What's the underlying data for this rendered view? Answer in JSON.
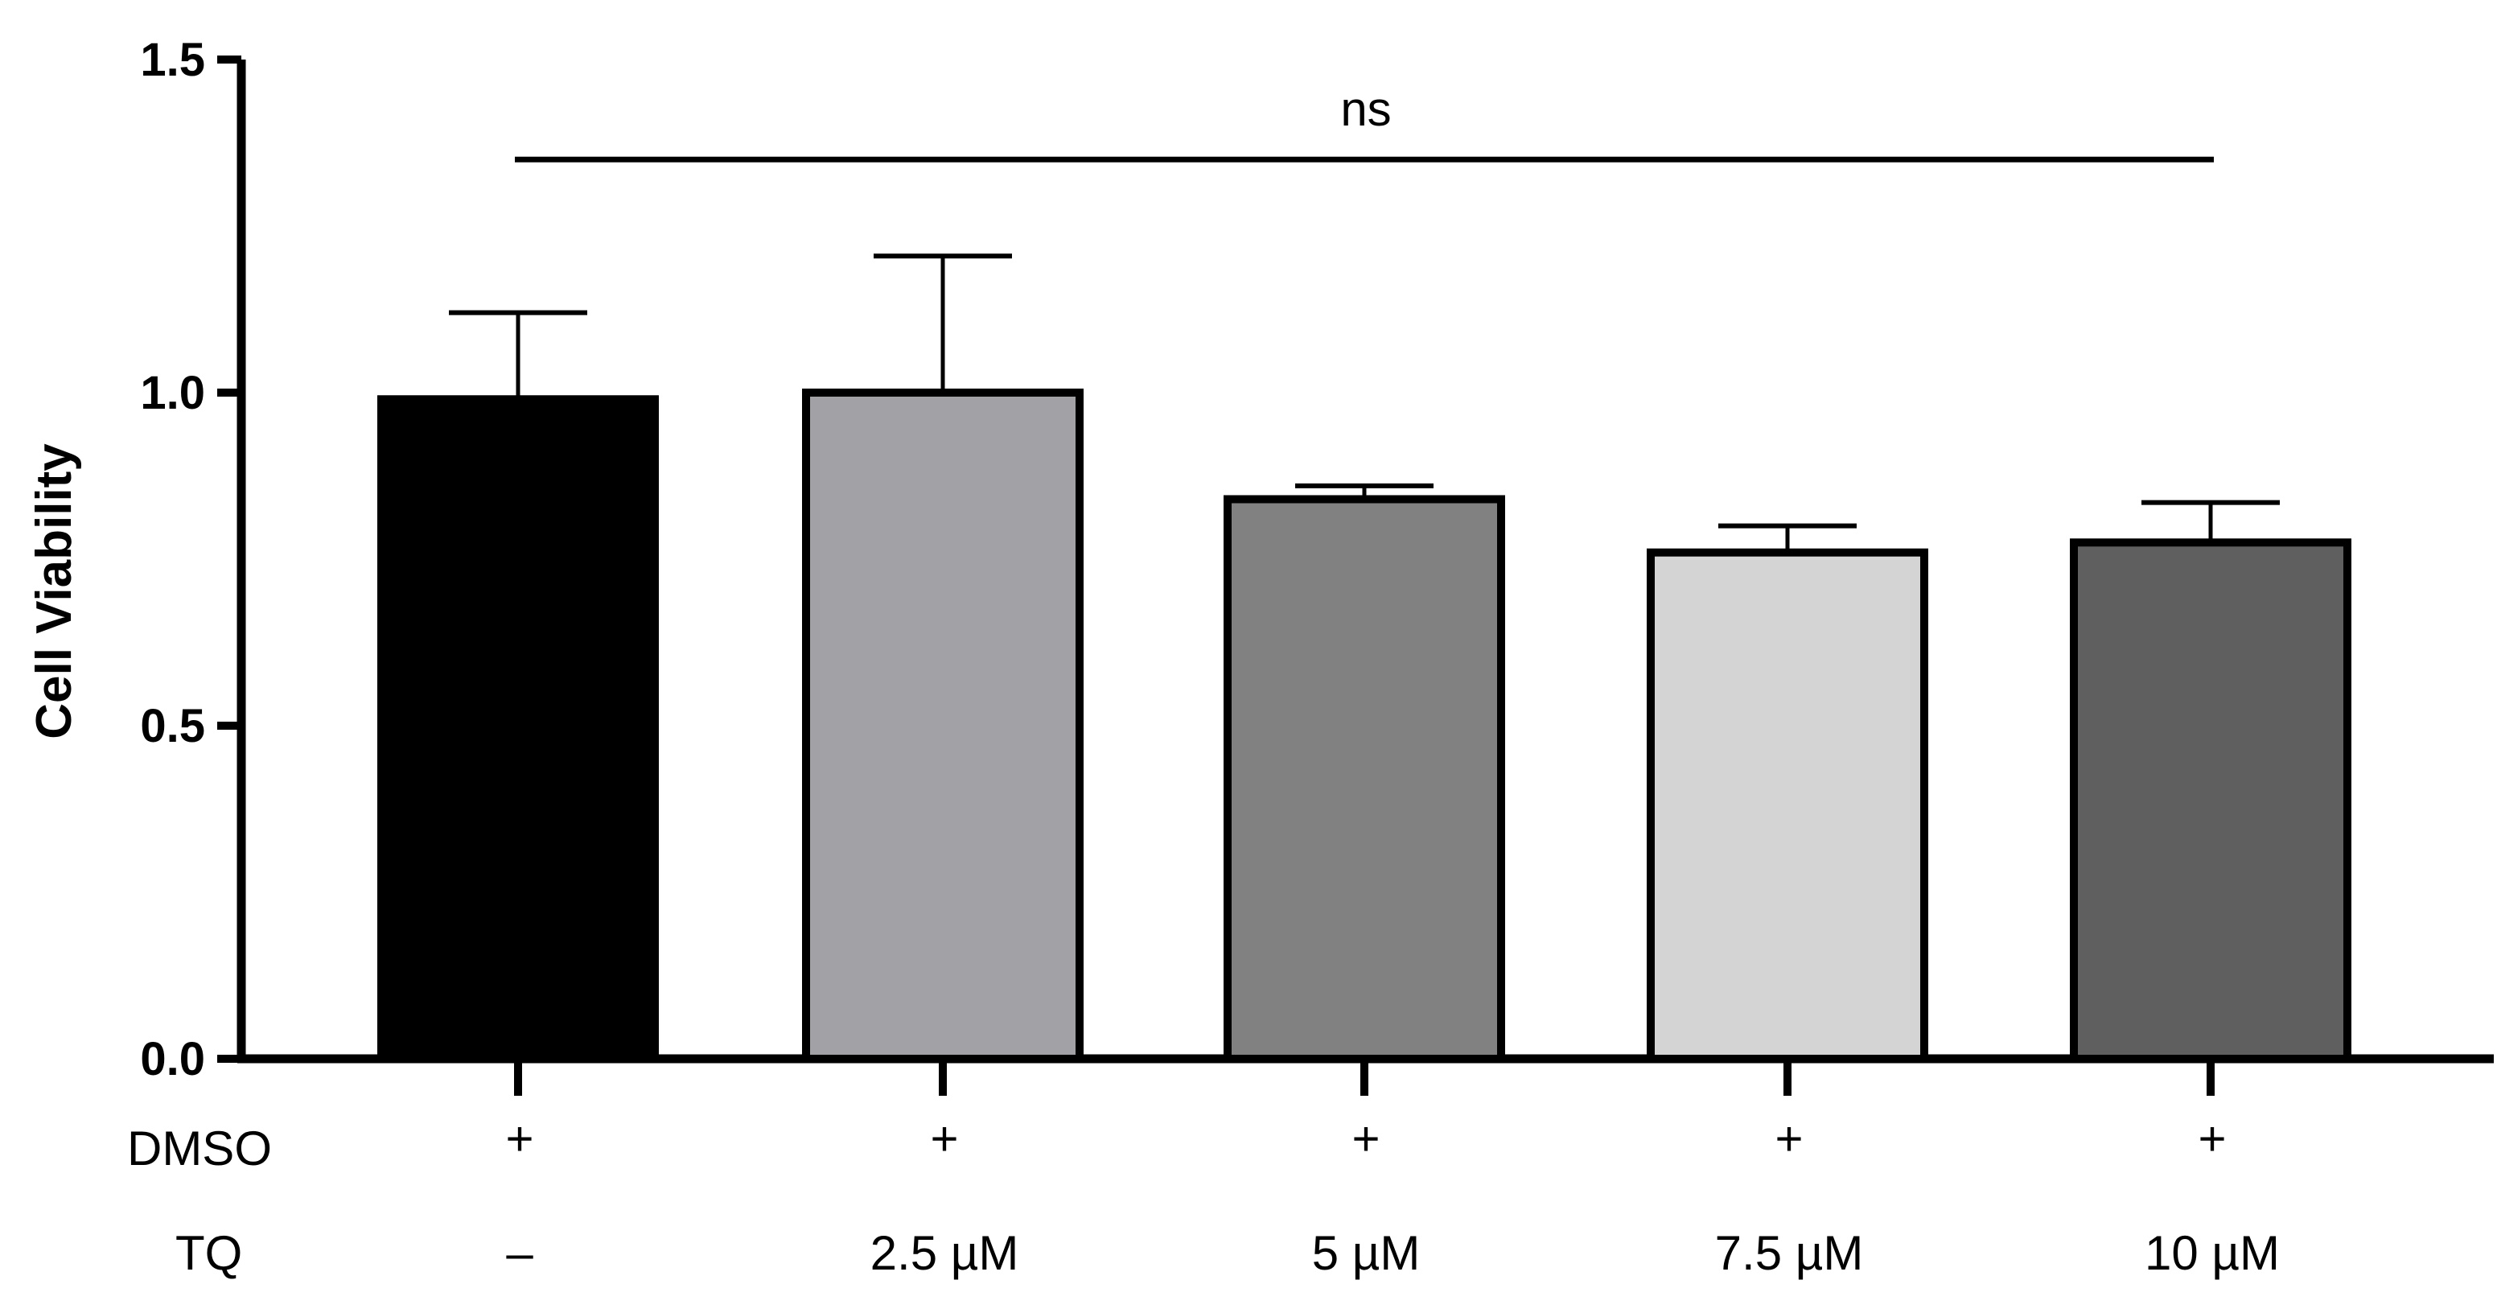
{
  "chart_data": {
    "type": "bar",
    "categories": [
      "DMSO",
      "2.5 µM TQ",
      "5 µM TQ",
      "7.5 µM TQ",
      "10 µM TQ"
    ],
    "values": [
      0.99,
      1.0,
      0.84,
      0.76,
      0.775
    ],
    "error_upper": [
      0.13,
      0.205,
      0.02,
      0.04,
      0.06
    ],
    "bar_colors": [
      "#000000",
      "#a2a1a6",
      "#818181",
      "#d4d4d4",
      "#5f5f5f"
    ],
    "ylabel": "Cell Viability",
    "ylim": [
      0,
      1.5
    ],
    "yticks": [
      {
        "value": 0.0,
        "label": "0.0"
      },
      {
        "value": 0.5,
        "label": "0.5"
      },
      {
        "value": 1.0,
        "label": "1.0"
      },
      {
        "value": 1.5,
        "label": "1.5"
      }
    ],
    "grid": false,
    "significance": {
      "label": "ns",
      "from_category": 0,
      "to_category": 4,
      "y": 1.35
    },
    "condition_rows": [
      {
        "label": "DMSO",
        "values": [
          "+",
          "+",
          "+",
          "+",
          "+"
        ]
      },
      {
        "label": "TQ",
        "values": [
          "–",
          "2.5 µM",
          "5 µM",
          "7.5 µM",
          "10 µM"
        ]
      }
    ]
  }
}
